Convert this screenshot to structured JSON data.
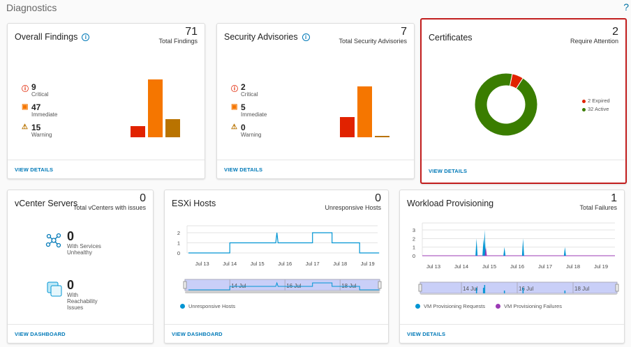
{
  "page": {
    "title": "Diagnostics",
    "help_label": "?"
  },
  "overall": {
    "title": "Overall Findings",
    "info": "i",
    "total": "71",
    "total_label": "Total Findings",
    "critical": "9",
    "critical_label": "Critical",
    "immediate": "47",
    "immediate_label": "Immediate",
    "warning": "15",
    "warning_label": "Warning",
    "link": "VIEW DETAILS"
  },
  "advisories": {
    "title": "Security Advisories",
    "info": "i",
    "total": "7",
    "total_label": "Total Security Advisories",
    "critical": "2",
    "critical_label": "Critical",
    "immediate": "5",
    "immediate_label": "Immediate",
    "warning": "0",
    "warning_label": "Warning",
    "link": "VIEW DETAILS"
  },
  "certificates": {
    "title": "Certificates",
    "total": "2",
    "total_label": "Require Attention",
    "legend": [
      "2 Expired",
      "32 Active"
    ],
    "link": "VIEW DETAILS"
  },
  "vcenter": {
    "title": "vCenter Servers",
    "total": "0",
    "total_label": "Total vCenters with issues",
    "services": "0",
    "services_label": "With Services Unhealthy",
    "reach": "0",
    "reach_label": "With Reachability Issues",
    "link": "VIEW DASHBOARD"
  },
  "esxi": {
    "title": "ESXi Hosts",
    "total": "0",
    "total_label": "Unresponsive Hosts",
    "legend": "Unresponsive Hosts",
    "link": "VIEW DASHBOARD"
  },
  "workload": {
    "title": "Workload Provisioning",
    "total": "1",
    "total_label": "Total Failures",
    "legend": [
      "VM Provisioning Requests",
      "VM Provisioning Failures"
    ],
    "link": "VIEW DETAILS"
  },
  "colors": {
    "critical": "#e12200",
    "immediate": "#f57600",
    "warning": "#b97300",
    "active": "#3a7d00",
    "link": "#0079b8",
    "series": "#0095d3",
    "failures": "#9b3ab5",
    "highlight": "#c21d1d"
  },
  "chart_data": [
    {
      "type": "bar",
      "categories": [
        "Critical",
        "Immediate",
        "Warning"
      ],
      "values": [
        9,
        47,
        15
      ]
    },
    {
      "type": "bar",
      "categories": [
        "Critical",
        "Immediate",
        "Warning"
      ],
      "values": [
        2,
        5,
        0
      ]
    },
    {
      "type": "pie",
      "categories": [
        "Expired",
        "Active"
      ],
      "values": [
        2,
        32
      ]
    },
    {
      "type": "line",
      "x_ticks": [
        "Jul 13",
        "Jul 14",
        "Jul 15",
        "Jul 16",
        "Jul 17",
        "Jul 18",
        "Jul 19"
      ],
      "y_ticks": [
        0,
        1,
        2
      ],
      "navigator_ticks": [
        "14 Jul",
        "16 Jul",
        "18 Jul"
      ],
      "series": [
        {
          "name": "Unresponsive Hosts",
          "points": [
            [
              "Jul 12 12:00",
              0
            ],
            [
              "Jul 14 00:00",
              0
            ],
            [
              "Jul 14 00:00",
              1
            ],
            [
              "Jul 15 16:00",
              1
            ],
            [
              "Jul 15 17:00",
              2
            ],
            [
              "Jul 15 18:00",
              1
            ],
            [
              "Jul 17 00:00",
              1
            ],
            [
              "Jul 17 00:00",
              2
            ],
            [
              "Jul 17 17:00",
              2
            ],
            [
              "Jul 17 17:00",
              1
            ],
            [
              "Jul 18 17:00",
              1
            ],
            [
              "Jul 18 17:00",
              0
            ],
            [
              "Jul 19 10:00",
              0
            ]
          ]
        }
      ]
    },
    {
      "type": "line",
      "x_ticks": [
        "Jul 13",
        "Jul 14",
        "Jul 15",
        "Jul 16",
        "Jul 17",
        "Jul 18",
        "Jul 19"
      ],
      "y_ticks": [
        0,
        1,
        2,
        3
      ],
      "navigator_ticks": [
        "14 Jul",
        "16 Jul",
        "18 Jul"
      ],
      "series": [
        {
          "name": "VM Provisioning Requests",
          "spikes": [
            [
              "Jul 14 13:00",
              2
            ],
            [
              "Jul 14 19:00",
              2
            ],
            [
              "Jul 14 20:00",
              3
            ],
            [
              "Jul 15 13:00",
              1
            ],
            [
              "Jul 16 05:00",
              2
            ],
            [
              "Jul 17 17:00",
              1
            ]
          ]
        },
        {
          "name": "VM Provisioning Failures",
          "spikes": [
            [
              "Jul 14 21:00",
              1
            ]
          ]
        }
      ]
    }
  ]
}
